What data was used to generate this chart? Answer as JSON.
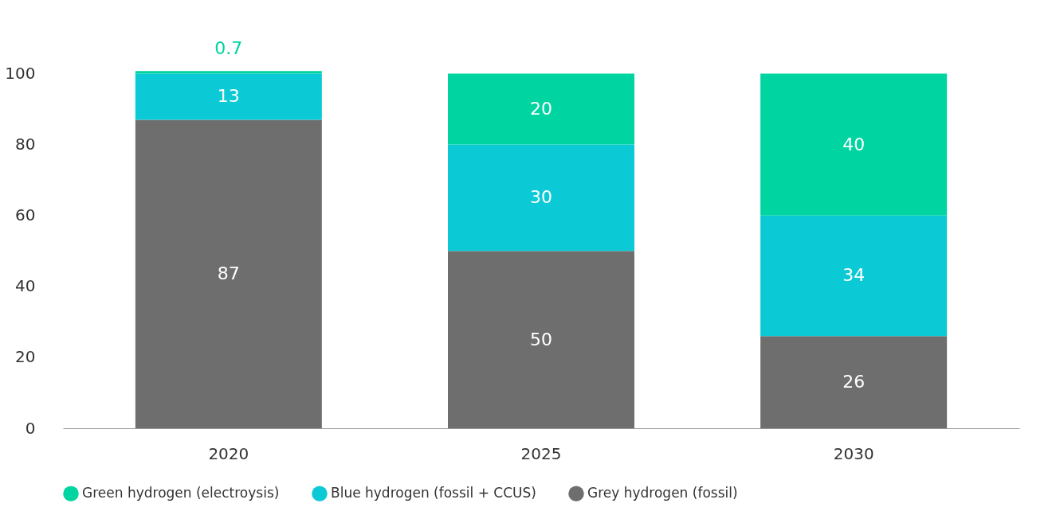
{
  "chart_data": {
    "type": "bar",
    "stacked": true,
    "categories": [
      "2020",
      "2025",
      "2030"
    ],
    "series": [
      {
        "name": "Grey hydrogen (fossil)",
        "color": "#6e6e6e",
        "values": [
          87,
          50,
          26
        ]
      },
      {
        "name": "Blue hydrogen (fossil + CCUS)",
        "color": "#0cc9d6",
        "values": [
          13,
          30,
          34
        ]
      },
      {
        "name": "Green hydrogen (electroysis)",
        "color": "#00d4a0",
        "values": [
          0.7,
          20,
          40
        ]
      }
    ],
    "ylim": [
      0,
      101
    ],
    "yticks": [
      0,
      20,
      40,
      60,
      80,
      100
    ],
    "data_labels": true,
    "grid": false,
    "legend": "bottom"
  }
}
